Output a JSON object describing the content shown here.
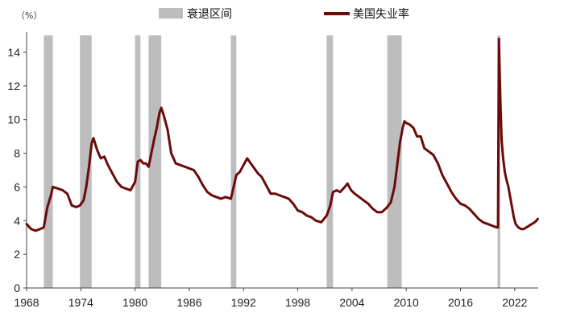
{
  "chart_data": {
    "type": "line",
    "unit_label": "（%）",
    "xlim": [
      1968,
      2024.6
    ],
    "ylim": [
      0,
      15
    ],
    "x_ticks": [
      1968,
      1974,
      1980,
      1986,
      1992,
      1998,
      2004,
      2010,
      2016,
      2022
    ],
    "y_ticks": [
      0,
      2,
      4,
      6,
      8,
      10,
      12,
      14
    ],
    "legend": [
      {
        "label": "衰退区间",
        "kind": "band",
        "color": "#bdbdbd"
      },
      {
        "label": "美国失业率",
        "kind": "line",
        "color": "#6b0a0a"
      }
    ],
    "recessions": [
      [
        1969.9,
        1970.9
      ],
      [
        1973.9,
        1975.2
      ],
      [
        1980.0,
        1980.6
      ],
      [
        1981.5,
        1982.9
      ],
      [
        1990.6,
        1991.2
      ],
      [
        2001.2,
        2001.9
      ],
      [
        2007.9,
        2009.5
      ],
      [
        2020.1,
        2020.4
      ]
    ],
    "series": [
      {
        "color": "#6b0a0a",
        "x": [
          1968.0,
          1968.5,
          1969.0,
          1969.5,
          1969.9,
          1970.3,
          1970.7,
          1970.9,
          1971.5,
          1972.0,
          1972.5,
          1973.0,
          1973.5,
          1973.9,
          1974.3,
          1974.6,
          1974.9,
          1975.2,
          1975.4,
          1975.8,
          1976.2,
          1976.6,
          1977.0,
          1977.5,
          1978.0,
          1978.5,
          1979.0,
          1979.5,
          1980.0,
          1980.3,
          1980.6,
          1980.9,
          1981.2,
          1981.5,
          1981.8,
          1982.1,
          1982.4,
          1982.7,
          1982.9,
          1983.2,
          1983.6,
          1984.0,
          1984.5,
          1985.0,
          1985.5,
          1986.0,
          1986.5,
          1987.0,
          1987.5,
          1988.0,
          1988.5,
          1989.0,
          1989.5,
          1990.0,
          1990.6,
          1990.9,
          1991.2,
          1991.6,
          1992.0,
          1992.4,
          1992.8,
          1993.2,
          1993.6,
          1994.0,
          1994.5,
          1995.0,
          1995.5,
          1996.0,
          1996.5,
          1997.0,
          1997.5,
          1998.0,
          1998.5,
          1999.0,
          1999.5,
          2000.0,
          2000.6,
          2001.2,
          2001.6,
          2001.9,
          2002.3,
          2002.7,
          2003.2,
          2003.5,
          2003.9,
          2004.3,
          2004.8,
          2005.3,
          2005.8,
          2006.3,
          2006.8,
          2007.3,
          2007.9,
          2008.3,
          2008.7,
          2009.0,
          2009.3,
          2009.6,
          2009.8,
          2010.0,
          2010.4,
          2010.8,
          2011.2,
          2011.6,
          2012.0,
          2012.5,
          2013.0,
          2013.5,
          2014.0,
          2014.5,
          2015.0,
          2015.5,
          2016.0,
          2016.5,
          2017.0,
          2017.5,
          2018.0,
          2018.5,
          2019.0,
          2019.5,
          2020.0,
          2020.15,
          2020.25,
          2020.32,
          2020.42,
          2020.55,
          2020.7,
          2020.9,
          2021.1,
          2021.3,
          2021.5,
          2021.7,
          2021.9,
          2022.1,
          2022.4,
          2022.7,
          2023.0,
          2023.3,
          2023.6,
          2023.9,
          2024.2,
          2024.4,
          2024.55
        ],
        "y": [
          3.8,
          3.5,
          3.4,
          3.5,
          3.6,
          4.8,
          5.5,
          6.0,
          5.9,
          5.8,
          5.6,
          4.9,
          4.8,
          4.9,
          5.2,
          6.0,
          7.2,
          8.6,
          8.9,
          8.2,
          7.7,
          7.8,
          7.3,
          6.8,
          6.3,
          6.0,
          5.9,
          5.8,
          6.3,
          7.5,
          7.6,
          7.4,
          7.4,
          7.2,
          8.0,
          8.8,
          9.5,
          10.4,
          10.7,
          10.2,
          9.4,
          8.0,
          7.4,
          7.3,
          7.2,
          7.1,
          7.0,
          6.6,
          6.1,
          5.7,
          5.5,
          5.4,
          5.3,
          5.4,
          5.3,
          6.0,
          6.7,
          6.9,
          7.3,
          7.7,
          7.4,
          7.1,
          6.8,
          6.6,
          6.1,
          5.6,
          5.6,
          5.5,
          5.4,
          5.3,
          5.0,
          4.6,
          4.5,
          4.3,
          4.2,
          4.0,
          3.9,
          4.3,
          4.9,
          5.7,
          5.8,
          5.7,
          6.0,
          6.2,
          5.8,
          5.6,
          5.4,
          5.2,
          5.0,
          4.7,
          4.5,
          4.5,
          4.8,
          5.1,
          6.0,
          7.3,
          8.6,
          9.5,
          9.9,
          9.8,
          9.7,
          9.5,
          9.0,
          9.0,
          8.3,
          8.1,
          7.9,
          7.4,
          6.7,
          6.2,
          5.7,
          5.3,
          5.0,
          4.9,
          4.7,
          4.4,
          4.1,
          3.9,
          3.8,
          3.7,
          3.6,
          3.6,
          14.8,
          13.2,
          11.0,
          8.8,
          7.8,
          6.9,
          6.4,
          6.0,
          5.4,
          4.8,
          4.2,
          3.8,
          3.6,
          3.5,
          3.5,
          3.6,
          3.7,
          3.8,
          3.9,
          4.0,
          4.1
        ]
      }
    ]
  }
}
